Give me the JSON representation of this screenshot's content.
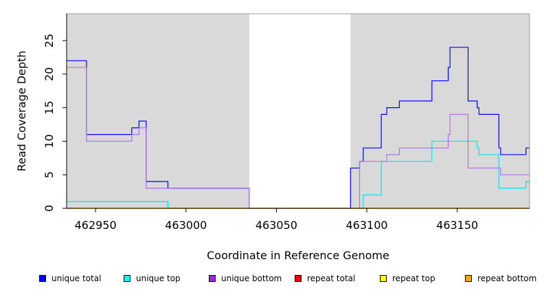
{
  "chart_data": {
    "type": "line",
    "title": "",
    "xlabel": "Coordinate in Reference Genome",
    "ylabel": "Read Coverage Depth",
    "xlim": [
      462934,
      463190
    ],
    "ylim": [
      0,
      29
    ],
    "xticks": [
      462950,
      463000,
      463050,
      463100,
      463150
    ],
    "yticks": [
      0,
      5,
      10,
      15,
      20,
      25
    ],
    "grid": false,
    "background_regions": [
      {
        "x0": 462934,
        "x1": 463035,
        "color": "#d9d9d9"
      },
      {
        "x0": 463035,
        "x1": 463091,
        "color": "#ffffff"
      },
      {
        "x0": 463091,
        "x1": 463190,
        "color": "#d9d9d9"
      }
    ],
    "legend_position": "bottom",
    "series": [
      {
        "name": "unique total",
        "color": "#0000ff",
        "steps": [
          [
            462934,
            22
          ],
          [
            462945,
            11
          ],
          [
            462970,
            12
          ],
          [
            462974,
            13
          ],
          [
            462978,
            4
          ],
          [
            462990,
            3
          ],
          [
            463035,
            0
          ],
          [
            463091,
            6
          ],
          [
            463096,
            7
          ],
          [
            463098,
            9
          ],
          [
            463108,
            14
          ],
          [
            463111,
            15
          ],
          [
            463118,
            16
          ],
          [
            463136,
            19
          ],
          [
            463145,
            21
          ],
          [
            463146,
            24
          ],
          [
            463156,
            16
          ],
          [
            463161,
            15
          ],
          [
            463162,
            14
          ],
          [
            463173,
            9
          ],
          [
            463174,
            8
          ],
          [
            463188,
            9
          ],
          [
            463190,
            9
          ]
        ]
      },
      {
        "name": "unique top",
        "color": "#00e5ee",
        "steps": [
          [
            462934,
            1
          ],
          [
            462990,
            0
          ],
          [
            463035,
            0
          ],
          [
            463091,
            0
          ],
          [
            463097,
            0
          ],
          [
            463098,
            2
          ],
          [
            463108,
            7
          ],
          [
            463136,
            10
          ],
          [
            463161,
            9
          ],
          [
            463162,
            8
          ],
          [
            463173,
            3
          ],
          [
            463188,
            4
          ],
          [
            463190,
            4
          ]
        ]
      },
      {
        "name": "unique bottom",
        "color": "#b26ee6",
        "steps": [
          [
            462934,
            21
          ],
          [
            462945,
            10
          ],
          [
            462970,
            11
          ],
          [
            462974,
            12
          ],
          [
            462978,
            3
          ],
          [
            462990,
            3
          ],
          [
            463035,
            0
          ],
          [
            463091,
            0
          ],
          [
            463096,
            7
          ],
          [
            463111,
            8
          ],
          [
            463118,
            9
          ],
          [
            463145,
            11
          ],
          [
            463146,
            14
          ],
          [
            463156,
            6
          ],
          [
            463174,
            5
          ],
          [
            463190,
            5
          ]
        ]
      },
      {
        "name": "repeat total",
        "color": "#ff0000",
        "steps": [
          [
            462934,
            0
          ],
          [
            463190,
            0
          ]
        ]
      },
      {
        "name": "repeat top",
        "color": "#ffff00",
        "steps": [
          [
            462934,
            0
          ],
          [
            463190,
            0
          ]
        ]
      },
      {
        "name": "repeat bottom",
        "color": "#ffa500",
        "steps": [
          [
            462934,
            0
          ],
          [
            463190,
            0
          ]
        ]
      }
    ]
  },
  "legend": [
    {
      "label": "unique total",
      "color": "#0000ff"
    },
    {
      "label": "unique top",
      "color": "#00ffff"
    },
    {
      "label": "unique bottom",
      "color": "#a020f0"
    },
    {
      "label": "repeat total",
      "color": "#ff0000"
    },
    {
      "label": "repeat top",
      "color": "#ffff00"
    },
    {
      "label": "repeat bottom",
      "color": "#ffa500"
    }
  ]
}
